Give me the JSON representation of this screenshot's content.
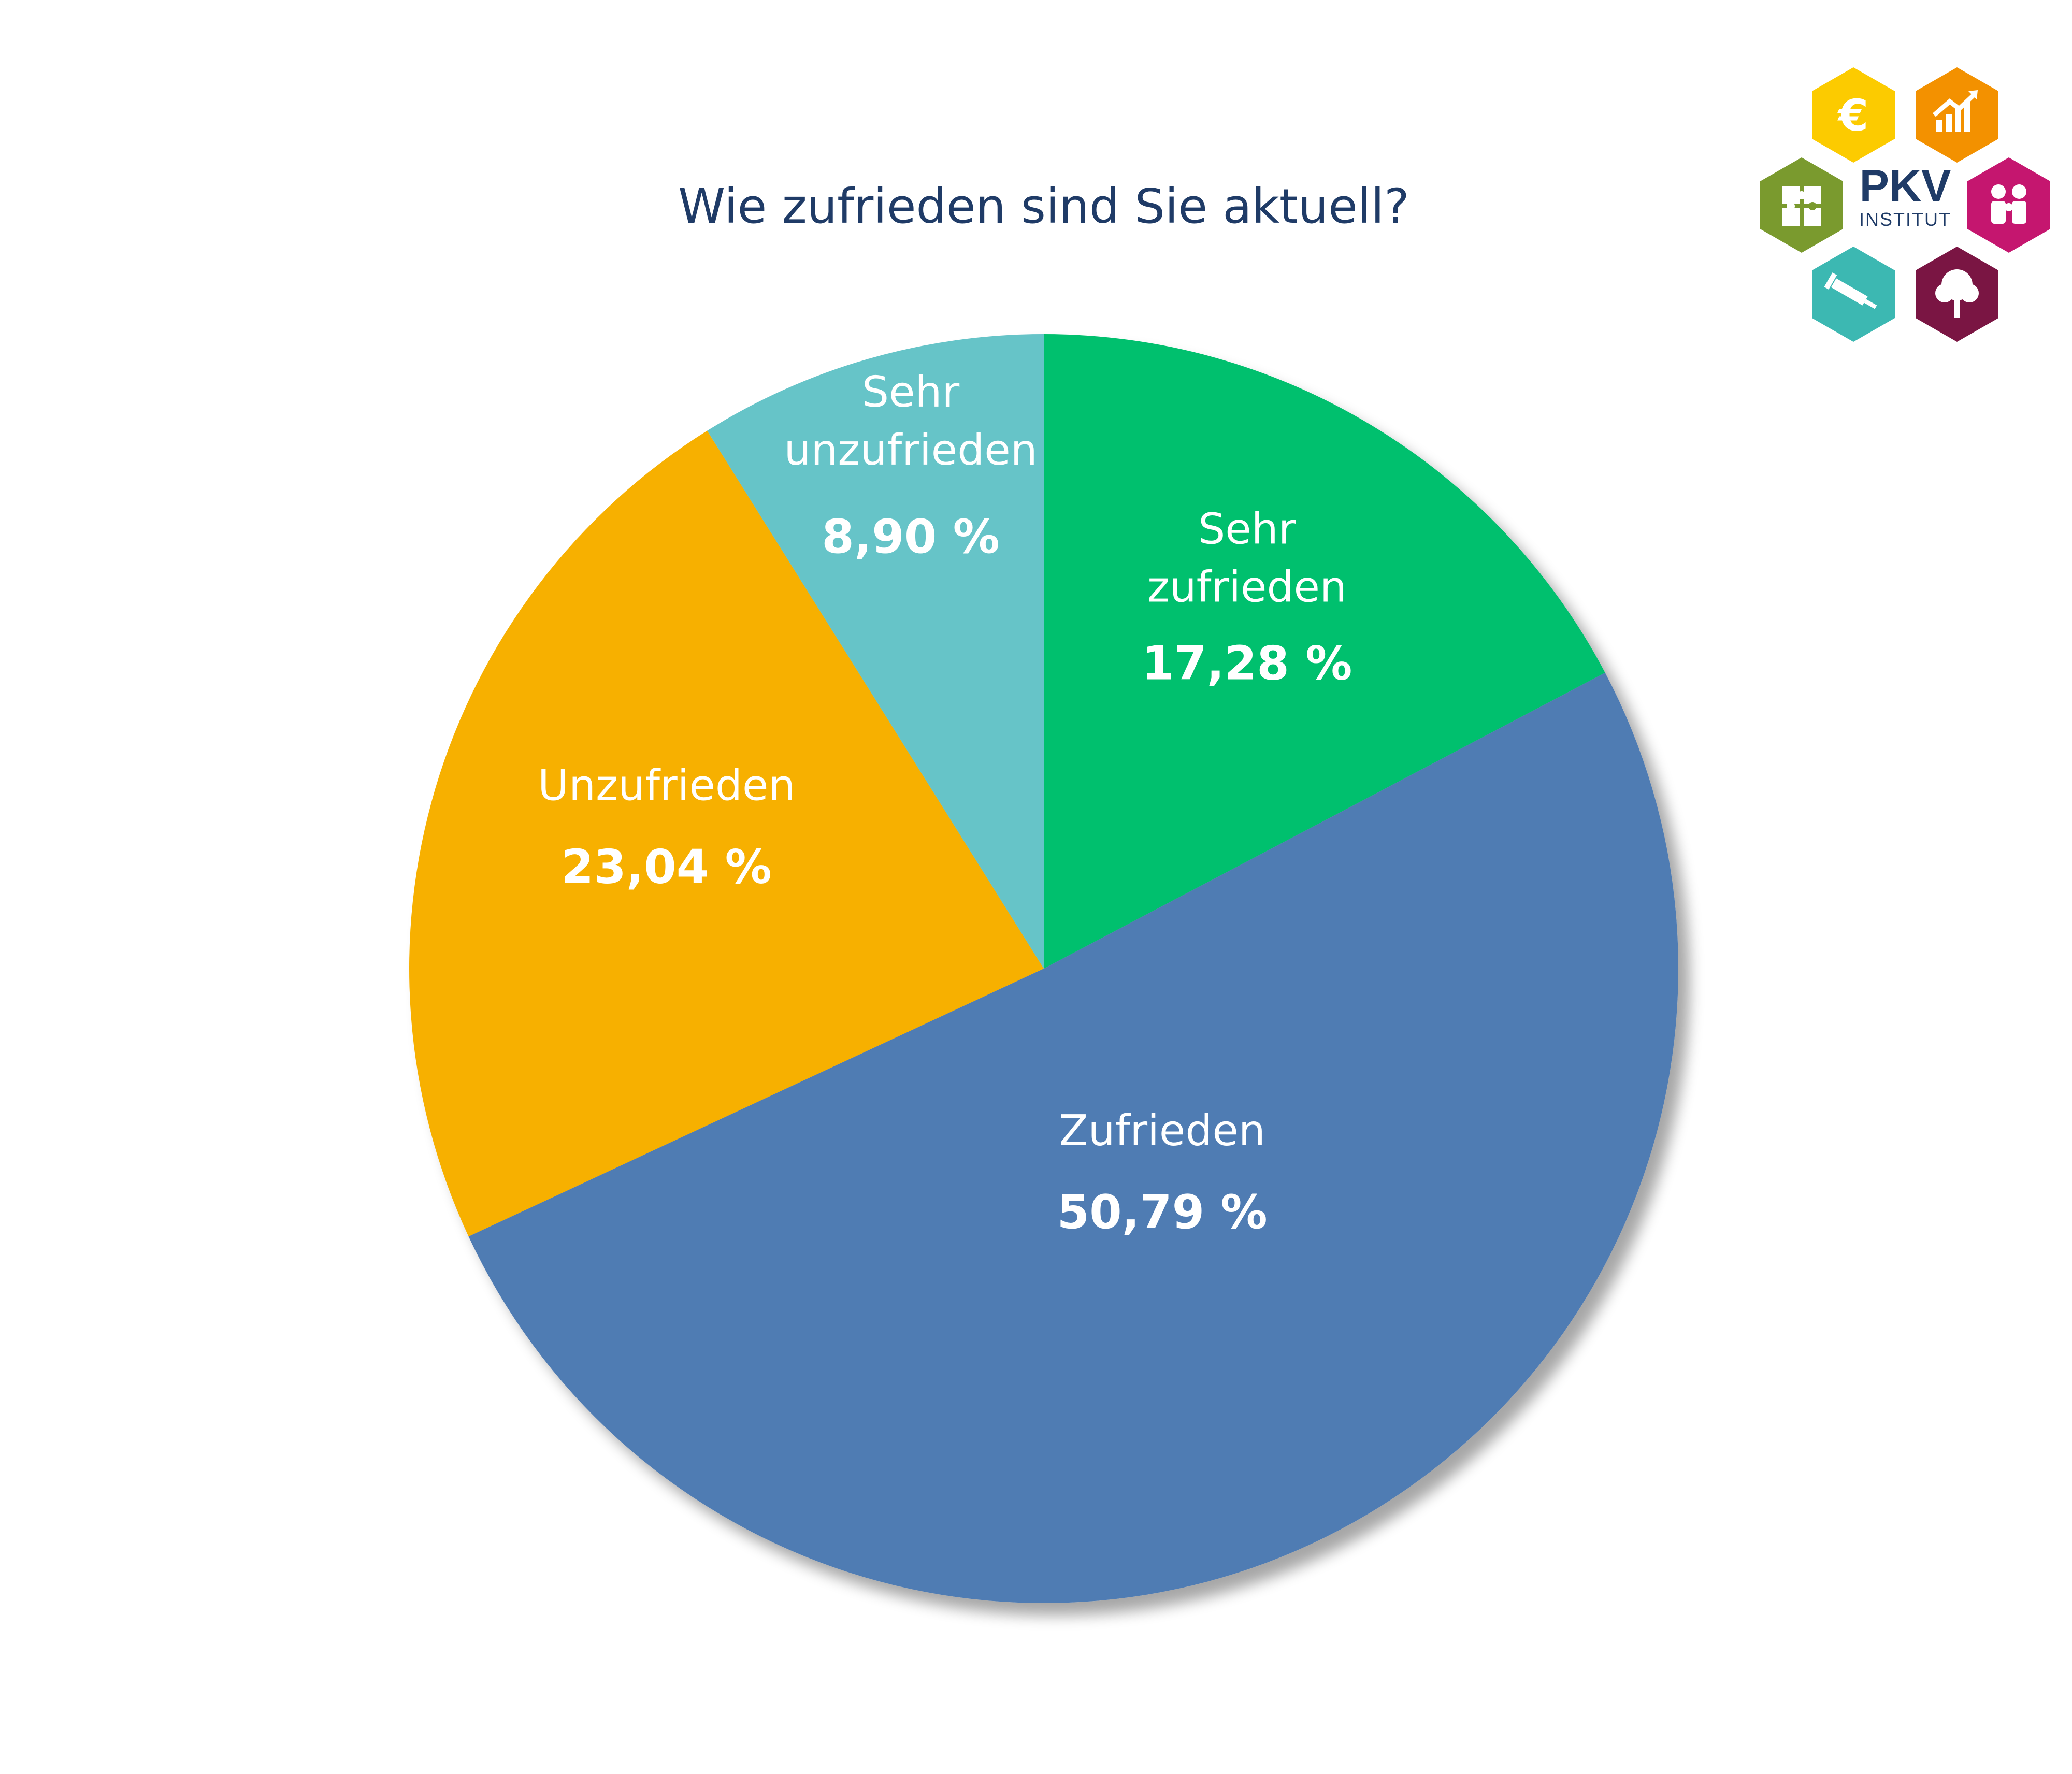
{
  "chart_data": {
    "type": "pie",
    "title": "Wie zufrieden sind Sie aktuell?",
    "slices": [
      {
        "name_lines": [
          "Sehr",
          "zufrieden"
        ],
        "value": 17.28,
        "label": "17,28 %",
        "color": "#00c06e"
      },
      {
        "name_lines": [
          "Zufrieden"
        ],
        "value": 50.79,
        "label": "50,79 %",
        "color": "#507cb3"
      },
      {
        "name_lines": [
          "Unzufrieden"
        ],
        "value": 23.04,
        "label": "23,04 %",
        "color": "#f7b000"
      },
      {
        "name_lines": [
          "Sehr",
          "unzufrieden"
        ],
        "value": 8.9,
        "label": "8,90 %",
        "color": "#66c4c8"
      }
    ],
    "start": "12 o'clock",
    "direction": "clockwise",
    "legend": "none"
  },
  "logo": {
    "name": "PKV",
    "sub": "INSTITUT",
    "hex_colors": [
      "#fccb00",
      "#f39100",
      "#7a9a2e",
      "#c5166f",
      "#3cb8b2",
      "#7a1543"
    ],
    "icons": [
      "euro-icon",
      "growth-chart-icon",
      "puzzle-icon",
      "family-icon",
      "syringe-icon",
      "tree-icon"
    ]
  }
}
